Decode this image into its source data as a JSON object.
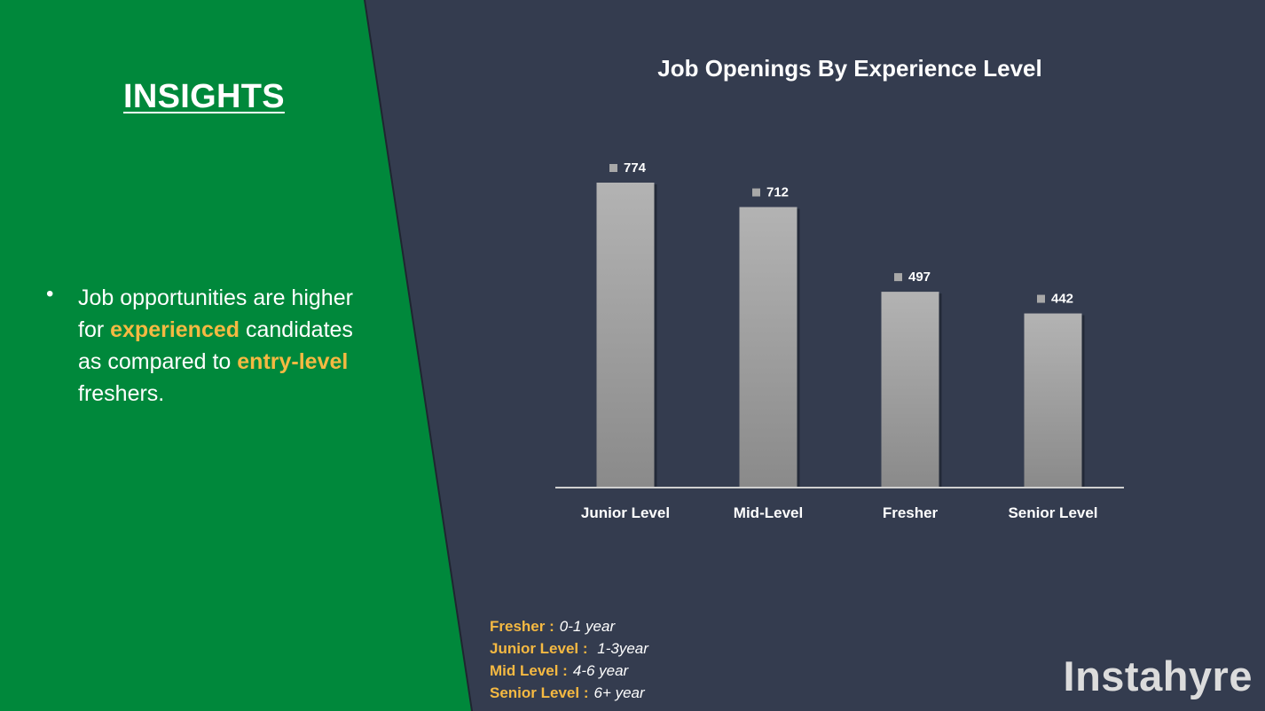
{
  "colors": {
    "background": "#343c4f",
    "panel_green": "#00883b",
    "highlight": "#f5b942",
    "bar_top": "#b3b3b3",
    "bar_bottom": "#8a8a8a",
    "axis": "#d0d0d0"
  },
  "insights": {
    "heading": "INSIGHTS",
    "bullet": "•",
    "text_1": "Job opportunities are higher for ",
    "highlight_1": "experienced",
    "text_2": " candidates as compared to ",
    "highlight_2": "entry-level",
    "text_3": " freshers."
  },
  "chart_data": {
    "type": "bar",
    "title": "Job Openings By Experience Level",
    "categories": [
      "Junior Level",
      "Mid-Level",
      "Fresher",
      "Senior Level"
    ],
    "values": [
      774,
      712,
      497,
      442
    ],
    "xlabel": "",
    "ylabel": "",
    "ylim": [
      0,
      774
    ],
    "grid": false,
    "data_labels": true
  },
  "experience_legend": [
    {
      "term": "Fresher :",
      "desc": "0-1 year"
    },
    {
      "term": "Junior Level :",
      "desc": " 1-3year"
    },
    {
      "term": "Mid Level :",
      "desc": "4-6 year"
    },
    {
      "term": "Senior Level :",
      "desc": "6+ year"
    }
  ],
  "brand": {
    "name": "Instahyre"
  }
}
